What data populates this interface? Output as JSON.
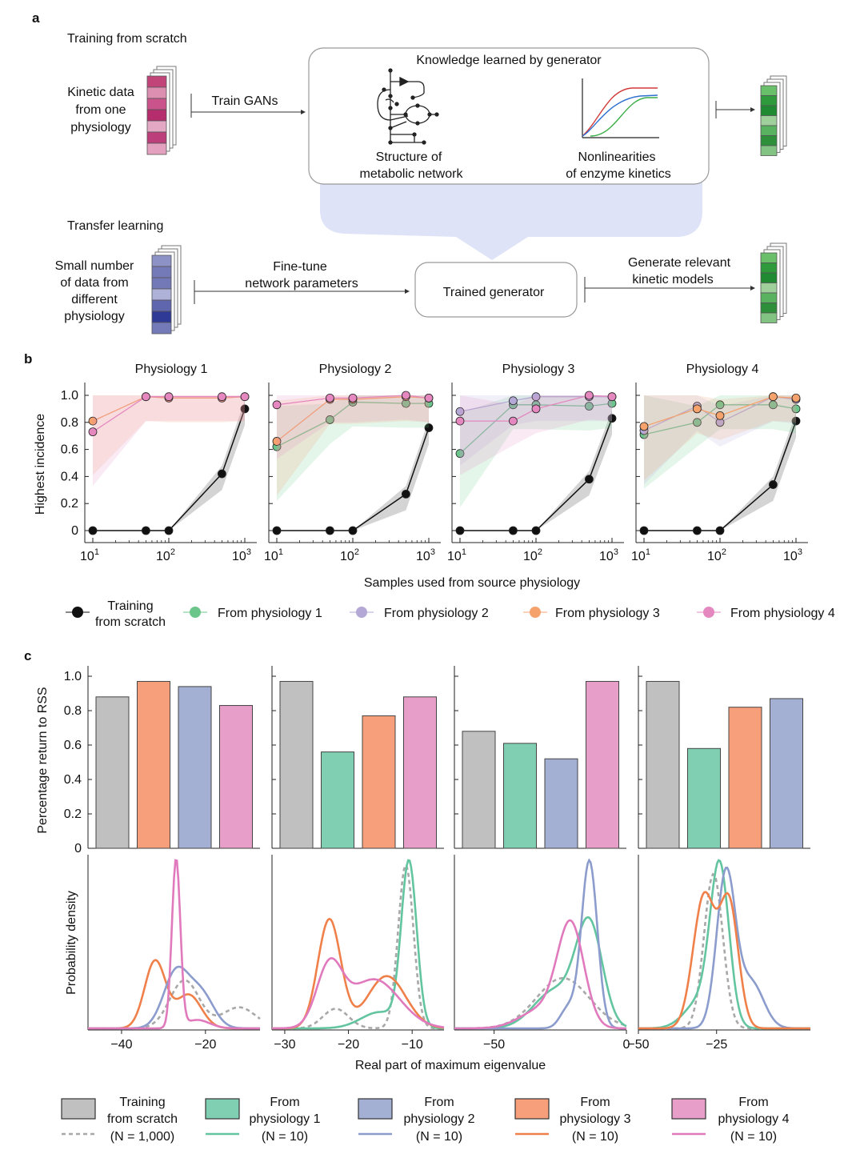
{
  "panel_a": {
    "label": "a",
    "scratch_title": "Training from scratch",
    "kinetic_data": [
      "Kinetic data",
      "from one",
      "physiology"
    ],
    "train_gans": "Train GANs",
    "knowledge_title": "Knowledge learned by generator",
    "structure": [
      "Structure of",
      "metabolic network"
    ],
    "nonlinear": [
      "Nonlinearities",
      "of enzyme kinetics"
    ],
    "transfer_title": "Transfer learning",
    "small_data": [
      "Small number",
      "of data from",
      "different",
      "physiology"
    ],
    "fine_tune": [
      "Fine-tune",
      "network parameters"
    ],
    "trained_generator": "Trained generator",
    "generate": [
      "Generate relevant",
      "kinetic models"
    ],
    "colors": {
      "pink_cells": [
        "#c2457a",
        "#dc8fb0",
        "#c9538a",
        "#b62d6e",
        "#e3a9c4",
        "#bc3f7c",
        "#e3a0bf"
      ],
      "blue_cells": [
        "#8d92c6",
        "#7479b7",
        "#7378b6",
        "#aeb1d8",
        "#5f66ad",
        "#2e3a96",
        "#7479b7"
      ],
      "green_cells": [
        "#6abf6a",
        "#2f9a3c",
        "#1f8a32",
        "#9fd09b",
        "#58b25f",
        "#2d8f3a",
        "#82c283"
      ],
      "arrow_band": "#dfe3f7"
    }
  },
  "panel_b": {
    "label": "b",
    "ylabel": "Highest incidence",
    "xlabel": "Samples used from source physiology",
    "legend": {
      "scratch": [
        "Training",
        "from scratch"
      ],
      "p1": "From physiology 1",
      "p2": "From physiology 2",
      "p3": "From physiology 3",
      "p4": "From physiology 4"
    },
    "y_ticks": [
      "0",
      "0.2",
      "0.4",
      "0.6",
      "0.8",
      "1.0"
    ],
    "x_ticks": [
      "1",
      "2",
      "3"
    ]
  },
  "panel_c": {
    "label": "c",
    "bar_ylabel": "Percentage return to RSS",
    "density_ylabel": "Probability density",
    "xlabel": "Real part of maximum eigenvalue",
    "bar_y_ticks": [
      "0",
      "0.2",
      "0.4",
      "0.6",
      "0.8",
      "1.0"
    ],
    "x_ticks": [
      [
        "−40",
        "−20"
      ],
      [
        "−30",
        "−20",
        "−10"
      ],
      [
        "−50",
        "0"
      ],
      [
        "−50",
        "−25"
      ]
    ],
    "legend": [
      {
        "top": "Training",
        "mid": "from scratch",
        "bot": "(N = 1,000)"
      },
      {
        "top": "From",
        "mid": "physiology 1",
        "bot": "(N = 10)"
      },
      {
        "top": "From",
        "mid": "physiology 2",
        "bot": "(N = 10)"
      },
      {
        "top": "From",
        "mid": "physiology 3",
        "bot": "(N = 10)"
      },
      {
        "top": "From",
        "mid": "physiology 4",
        "bot": "(N = 10)"
      }
    ]
  },
  "chart_data": [
    {
      "type": "line",
      "panel": "b",
      "subplots": [
        {
          "title": "Physiology 1",
          "series": [
            {
              "name": "Training from scratch",
              "color": "#111111",
              "x": [
                10,
                50,
                100,
                500,
                1000
              ],
              "y": [
                0,
                0,
                0,
                0.42,
                0.9
              ]
            },
            {
              "name": "From physiology 3",
              "color": "#f5a26d",
              "x": [
                10,
                50,
                100,
                500,
                1000
              ],
              "y": [
                0.81,
                0.99,
                0.98,
                0.98,
                0.99
              ]
            },
            {
              "name": "From physiology 4",
              "color": "#e588c0",
              "x": [
                10,
                50,
                100,
                500,
                1000
              ],
              "y": [
                0.73,
                0.99,
                0.99,
                0.99,
                0.99
              ]
            }
          ]
        },
        {
          "title": "Physiology 2",
          "series": [
            {
              "name": "Training from scratch",
              "color": "#111111",
              "x": [
                10,
                50,
                100,
                500,
                1000
              ],
              "y": [
                0,
                0,
                0,
                0.27,
                0.76
              ]
            },
            {
              "name": "From physiology 1",
              "color": "#6cc58b",
              "x": [
                10,
                50,
                100,
                500,
                1000
              ],
              "y": [
                0.62,
                0.82,
                0.95,
                0.94,
                0.94
              ]
            },
            {
              "name": "From physiology 3",
              "color": "#f5a26d",
              "x": [
                10,
                50,
                100,
                500,
                1000
              ],
              "y": [
                0.66,
                0.97,
                0.97,
                0.99,
                0.98
              ]
            },
            {
              "name": "From physiology 4",
              "color": "#e588c0",
              "x": [
                10,
                50,
                100,
                500,
                1000
              ],
              "y": [
                0.93,
                0.98,
                0.98,
                1.0,
                0.98
              ]
            }
          ]
        },
        {
          "title": "Physiology 3",
          "series": [
            {
              "name": "Training from scratch",
              "color": "#111111",
              "x": [
                10,
                50,
                100,
                500,
                1000
              ],
              "y": [
                0,
                0,
                0,
                0.38,
                0.83
              ]
            },
            {
              "name": "From physiology 1",
              "color": "#6cc58b",
              "x": [
                10,
                50,
                100,
                500,
                1000
              ],
              "y": [
                0.57,
                0.93,
                0.93,
                0.92,
                0.94
              ]
            },
            {
              "name": "From physiology 2",
              "color": "#b4a9d6",
              "x": [
                10,
                50,
                100,
                500,
                1000
              ],
              "y": [
                0.88,
                0.96,
                0.99,
                0.99,
                0.99
              ]
            },
            {
              "name": "From physiology 4",
              "color": "#e588c0",
              "x": [
                10,
                50,
                100,
                500,
                1000
              ],
              "y": [
                0.81,
                0.81,
                0.9,
                1.0,
                0.99
              ]
            }
          ]
        },
        {
          "title": "Physiology 4",
          "series": [
            {
              "name": "Training from scratch",
              "color": "#111111",
              "x": [
                10,
                50,
                100,
                500,
                1000
              ],
              "y": [
                0,
                0,
                0,
                0.34,
                0.81
              ]
            },
            {
              "name": "From physiology 1",
              "color": "#6cc58b",
              "x": [
                10,
                50,
                100,
                500,
                1000
              ],
              "y": [
                0.71,
                0.8,
                0.93,
                0.93,
                0.9
              ]
            },
            {
              "name": "From physiology 2",
              "color": "#b4a9d6",
              "x": [
                10,
                50,
                100,
                500,
                1000
              ],
              "y": [
                0.74,
                0.92,
                0.8,
                0.99,
                0.97
              ]
            },
            {
              "name": "From physiology 3",
              "color": "#f5a26d",
              "x": [
                10,
                50,
                100,
                500,
                1000
              ],
              "y": [
                0.77,
                0.9,
                0.85,
                0.99,
                0.98
              ]
            }
          ]
        }
      ],
      "x_scale": "log",
      "xlim": [
        10,
        1000
      ],
      "ylim": [
        0,
        1.0
      ]
    },
    {
      "type": "bar",
      "panel": "c",
      "ylim": [
        0,
        1.0
      ],
      "groups": [
        {
          "colors": [
            "#c0c0c0",
            "#f79f7a",
            "#a3b0d3",
            "#e79ec9"
          ],
          "values": [
            0.88,
            0.97,
            0.94,
            0.83
          ]
        },
        {
          "colors": [
            "#c0c0c0",
            "#80cfb2",
            "#f79f7a",
            "#e79ec9"
          ],
          "values": [
            0.97,
            0.56,
            0.77,
            0.88
          ]
        },
        {
          "colors": [
            "#c0c0c0",
            "#80cfb2",
            "#a3b0d3",
            "#e79ec9"
          ],
          "values": [
            0.68,
            0.61,
            0.52,
            0.97
          ]
        },
        {
          "colors": [
            "#c0c0c0",
            "#80cfb2",
            "#f79f7a",
            "#a3b0d3"
          ],
          "values": [
            0.97,
            0.58,
            0.82,
            0.87
          ]
        }
      ]
    },
    {
      "type": "line",
      "panel": "c-density",
      "subplots": [
        {
          "xlim": [
            -48,
            -7
          ],
          "peak": 1.0,
          "series": [
            {
              "name": "Training from scratch",
              "color": "#a8a8a8",
              "dashed": true,
              "components": [
                [
                  1,
                  -25,
                  3.5
                ],
                [
                  0.5,
                  -12,
                  4
                ]
              ]
            },
            {
              "name": "From physiology 3",
              "color": "#f0804a",
              "components": [
                [
                  1,
                  -32,
                  2.5
                ],
                [
                  0.6,
                  -24,
                  3
                ]
              ]
            },
            {
              "name": "From physiology 2",
              "color": "#8b9ccd",
              "components": [
                [
                  1,
                  -27,
                  3
                ],
                [
                  0.6,
                  -21,
                  3
                ]
              ]
            },
            {
              "name": "From physiology 4",
              "color": "#e07abd",
              "components": [
                [
                  1,
                  -27,
                  1
                ],
                [
                  0.15,
                  -22,
                  3
                ]
              ]
            }
          ]
        },
        {
          "xlim": [
            -32,
            -5
          ],
          "peak": 1.0,
          "series": [
            {
              "name": "Training from scratch",
              "color": "#a8a8a8",
              "dashed": true,
              "components": [
                [
                  1,
                  -11,
                  1.2
                ],
                [
                  0.2,
                  -22,
                  2
                ]
              ]
            },
            {
              "name": "From physiology 1",
              "color": "#63c5a0",
              "components": [
                [
                  1,
                  -10.5,
                  1.2
                ],
                [
                  0.25,
                  -15,
                  3
                ]
              ]
            },
            {
              "name": "From physiology 3",
              "color": "#f0804a",
              "components": [
                [
                  1,
                  -23,
                  1.8
                ],
                [
                  0.8,
                  -14,
                  3
                ]
              ]
            },
            {
              "name": "From physiology 4",
              "color": "#e07abd",
              "components": [
                [
                  1,
                  -16,
                  4
                ],
                [
                  0.6,
                  -23,
                  2
                ]
              ]
            }
          ]
        },
        {
          "xlim": [
            -65,
            0
          ],
          "peak": 1.0,
          "series": [
            {
              "name": "Training from scratch",
              "color": "#a8a8a8",
              "dashed": true,
              "components": [
                [
                  1,
                  -24,
                  10
                ]
              ]
            },
            {
              "name": "From physiology 1",
              "color": "#63c5a0",
              "components": [
                [
                  1,
                  -14,
                  5
                ],
                [
                  0.6,
                  -27,
                  8
                ]
              ]
            },
            {
              "name": "From physiology 2",
              "color": "#8b9ccd",
              "components": [
                [
                  1,
                  -14,
                  3
                ],
                [
                  0.12,
                  -22,
                  3
                ]
              ]
            },
            {
              "name": "From physiology 4",
              "color": "#e07abd",
              "components": [
                [
                  1,
                  -21,
                  5
                ],
                [
                  0.3,
                  -32,
                  8
                ]
              ]
            }
          ]
        },
        {
          "xlim": [
            -50,
            5
          ],
          "peak": 1.0,
          "series": [
            {
              "name": "Training from scratch",
              "color": "#a8a8a8",
              "dashed": true,
              "components": [
                [
                  1,
                  -26,
                  3
                ]
              ]
            },
            {
              "name": "From physiology 1",
              "color": "#63c5a0",
              "components": [
                [
                  1,
                  -24,
                  3
                ],
                [
                  0.3,
                  -30,
                  5
                ]
              ]
            },
            {
              "name": "From physiology 2",
              "color": "#8b9ccd",
              "components": [
                [
                  1,
                  -22,
                  3
                ],
                [
                  0.4,
                  -14,
                  4
                ]
              ]
            },
            {
              "name": "From physiology 3",
              "color": "#f0804a",
              "components": [
                [
                  1,
                  -29,
                  3.5
                ],
                [
                  0.8,
                  -21,
                  3
                ]
              ]
            }
          ]
        }
      ]
    }
  ]
}
